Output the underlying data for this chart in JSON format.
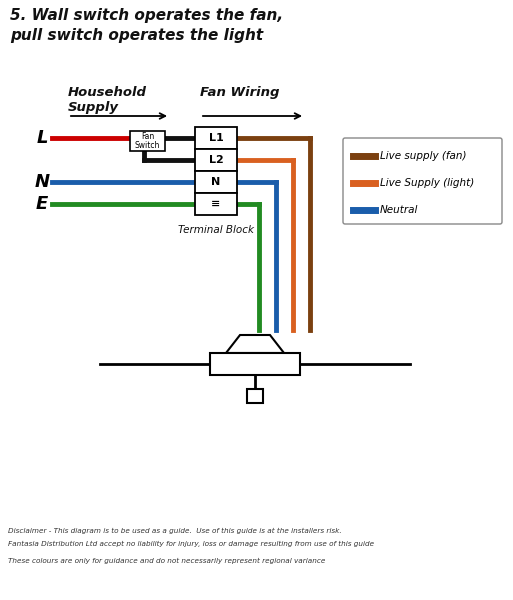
{
  "title_line1": "5. Wall switch operates the fan,",
  "title_line2": "pull switch operates the light",
  "legend_items": [
    {
      "label": "Live supply (fan)",
      "color": "#7B4010"
    },
    {
      "label": "Live Supply (light)",
      "color": "#D96020"
    },
    {
      "label": "Neutral",
      "color": "#1A5DAB"
    }
  ],
  "disclaimer1": "Disclaimer - This diagram is to be used as a guide.  Use of this guide is at the installers risk.",
  "disclaimer2": "Fantasia Distribution Ltd accept no liability for injury, loss or damage resulting from use of this guide",
  "disclaimer3": "These colours are only for guidance and do not necessarily represent regional variance",
  "bg_color": "#FFFFFF",
  "wire_lw": 3.5,
  "wire_colors": {
    "red": "#CC0000",
    "black": "#111111",
    "blue": "#1A5DAB",
    "green": "#228B22",
    "brown": "#7B4010",
    "orange": "#D96020"
  }
}
